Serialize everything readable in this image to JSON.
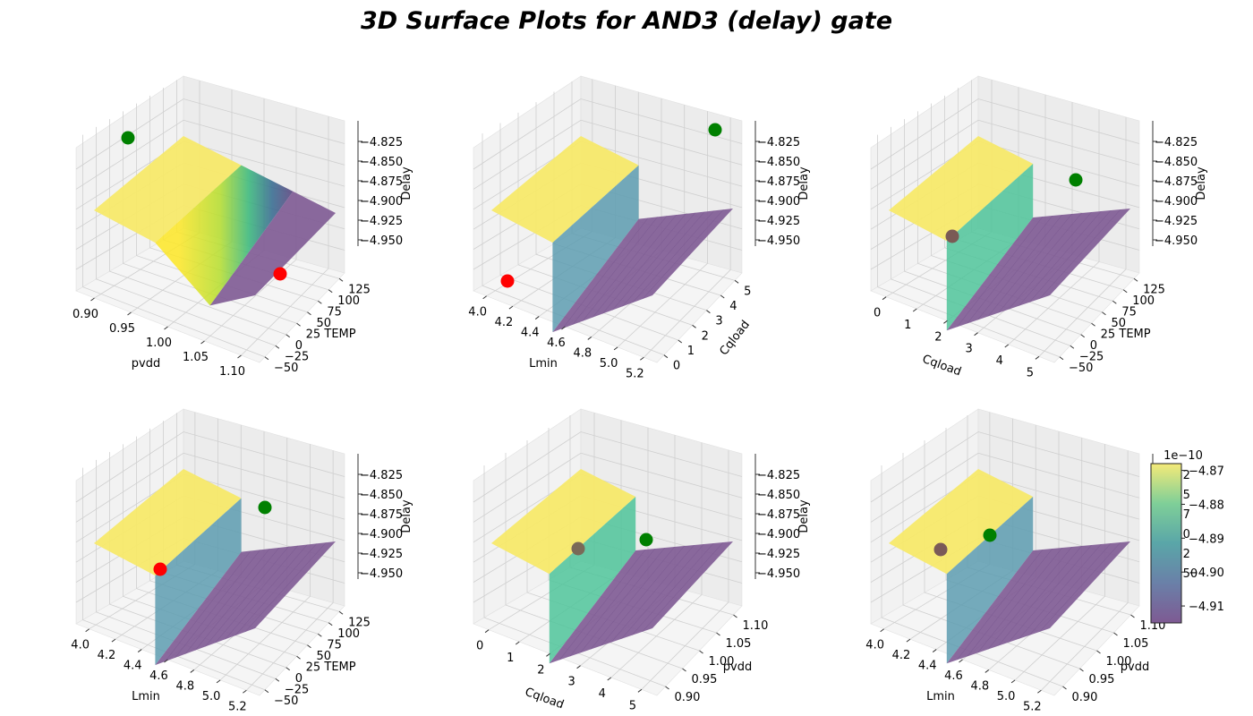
{
  "title": "3D Surface Plots for AND3 (delay) gate",
  "colors": {
    "surface_low": "#440154",
    "surface_mid": "#21908d",
    "surface_high": "#fde725",
    "max_point": "#008000",
    "min_point": "#ff0000",
    "pane": "#f2f2f2",
    "grid": "#c8c8c8"
  },
  "chart_data": [
    {
      "type": "surface3d",
      "xlabel": "pvdd",
      "ylabel": "TEMP",
      "zlabel": "Delay",
      "xticks": [
        "0.90",
        "0.95",
        "1.00",
        "1.05",
        "1.10"
      ],
      "yticks": [
        "−50",
        "−25",
        "0",
        "25",
        "50",
        "75",
        "100",
        "125"
      ],
      "zticks": [
        "−4.825",
        "−4.850",
        "−4.875",
        "−4.900",
        "−4.925",
        "−4.950"
      ],
      "shape": "ramp",
      "max_point_color": "green",
      "min_point_color": "red"
    },
    {
      "type": "surface3d",
      "xlabel": "Lmin",
      "ylabel": "Cqload",
      "zlabel": "Delay",
      "xticks": [
        "4.0",
        "4.2",
        "4.4",
        "4.6",
        "4.8",
        "5.0",
        "5.2"
      ],
      "yticks": [
        "0",
        "1",
        "2",
        "3",
        "4",
        "5"
      ],
      "zticks": [
        "−4.825",
        "−4.850",
        "−4.875",
        "−4.900",
        "−4.925",
        "−4.950"
      ],
      "shape": "step"
    },
    {
      "type": "surface3d",
      "xlabel": "Cqload",
      "ylabel": "TEMP",
      "zlabel": "Delay",
      "xticks": [
        "0",
        "1",
        "2",
        "3",
        "4",
        "5"
      ],
      "yticks": [
        "−50",
        "−25",
        "0",
        "25",
        "50",
        "75",
        "100",
        "125"
      ],
      "zticks": [
        "−4.825",
        "−4.850",
        "−4.875",
        "−4.900",
        "−4.925",
        "−4.950"
      ],
      "shape": "step"
    },
    {
      "type": "surface3d",
      "xlabel": "Lmin",
      "ylabel": "TEMP",
      "zlabel": "Delay",
      "xticks": [
        "4.0",
        "4.2",
        "4.4",
        "4.6",
        "4.8",
        "5.0",
        "5.2"
      ],
      "yticks": [
        "−50",
        "−25",
        "0",
        "25",
        "50",
        "75",
        "100",
        "125"
      ],
      "zticks": [
        "−4.825",
        "−4.850",
        "−4.875",
        "−4.900",
        "−4.925",
        "−4.950"
      ],
      "shape": "step"
    },
    {
      "type": "surface3d",
      "xlabel": "Cqload",
      "ylabel": "pvdd",
      "zlabel": "Delay",
      "xticks": [
        "0",
        "1",
        "2",
        "3",
        "4",
        "5"
      ],
      "yticks": [
        "0.90",
        "0.95",
        "1.00",
        "1.05",
        "1.10"
      ],
      "zticks": [
        "−4.825",
        "−4.850",
        "−4.875",
        "−4.900",
        "−4.925",
        "−4.950"
      ],
      "shape": "step"
    },
    {
      "type": "surface3d",
      "xlabel": "Lmin",
      "ylabel": "pvdd",
      "zlabel": "",
      "xticks": [
        "4.0",
        "4.2",
        "4.4",
        "4.6",
        "4.8",
        "5.0",
        "5.2"
      ],
      "yticks": [
        "0.90",
        "0.95",
        "1.00",
        "1.05",
        "1.10"
      ],
      "zticks": [
        "−4.82",
        "−4.85",
        "−4.87",
        "−4.90",
        "−4.92",
        "−4.950"
      ],
      "shape": "step"
    }
  ],
  "colorbar": {
    "exponent": "1e−10",
    "ticks": [
      "−4.87",
      "−4.88",
      "−4.89",
      "−4.90",
      "−4.91"
    ],
    "range": [
      -4.915,
      -4.868
    ]
  }
}
